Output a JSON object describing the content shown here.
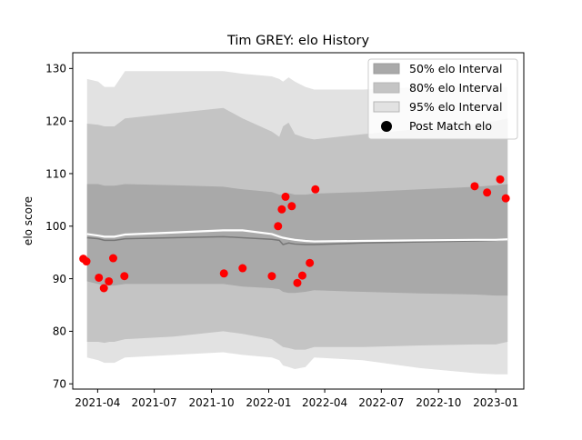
{
  "chart_data": {
    "type": "line",
    "title": "Tim GREY: elo History",
    "xlabel": "",
    "ylabel": "elo score",
    "ylim": [
      69,
      133
    ],
    "xlim": [
      "2021-02-20",
      "2023-02-15"
    ],
    "yticks": [
      70,
      80,
      90,
      100,
      110,
      120,
      130
    ],
    "xticks": [
      "2021-04",
      "2021-07",
      "2021-10",
      "2022-01",
      "2022-04",
      "2022-07",
      "2022-10",
      "2023-01"
    ],
    "grid": false,
    "legend_position": "top-right",
    "legend": [
      {
        "label": "50% elo Interval",
        "swatch": "band50"
      },
      {
        "label": "80% elo Interval",
        "swatch": "band80"
      },
      {
        "label": "95% elo Interval",
        "swatch": "band95"
      },
      {
        "label": "Post Match elo",
        "swatch": "dot"
      }
    ],
    "colors": {
      "band50": "#a9a9a9",
      "band80": "#c4c4c4",
      "band95": "#e2e2e2",
      "mean_line": "#777777",
      "center_line": "#ffffff",
      "points": "#ff0000"
    },
    "series": [
      {
        "name": "95% elo Interval",
        "kind": "band",
        "x": [
          "2021-03-15",
          "2021-04-02",
          "2021-04-12",
          "2021-04-20",
          "2021-04-28",
          "2021-05-15",
          "2021-08-01",
          "2021-10-20",
          "2021-11-20",
          "2022-01-06",
          "2022-01-18",
          "2022-01-24",
          "2022-02-02",
          "2022-02-12",
          "2022-03-01",
          "2022-03-15",
          "2022-06-01",
          "2022-09-01",
          "2022-12-01",
          "2023-01-01",
          "2023-01-20"
        ],
        "upper": [
          128,
          127.5,
          126.5,
          126.5,
          126.5,
          129.5,
          129.5,
          129.5,
          129,
          128.5,
          128,
          127.5,
          128.3,
          127.5,
          126.5,
          126,
          126,
          126.5,
          126.5,
          126.5,
          126.5
        ],
        "lower": [
          75,
          74.5,
          74,
          74,
          74,
          75,
          75.5,
          76,
          75.5,
          75,
          74.5,
          73.5,
          73.2,
          72.8,
          73.2,
          75,
          74.5,
          73,
          72,
          71.8,
          71.8
        ]
      },
      {
        "name": "80% elo Interval",
        "kind": "band",
        "x": [
          "2021-03-15",
          "2021-04-02",
          "2021-04-12",
          "2021-04-20",
          "2021-04-28",
          "2021-05-15",
          "2021-08-01",
          "2021-10-20",
          "2021-11-20",
          "2022-01-06",
          "2022-01-18",
          "2022-01-24",
          "2022-02-02",
          "2022-02-12",
          "2022-03-01",
          "2022-03-15",
          "2022-06-01",
          "2022-09-01",
          "2022-12-01",
          "2023-01-01",
          "2023-01-20"
        ],
        "upper": [
          119.5,
          119.3,
          119,
          119,
          119,
          120.5,
          121.5,
          122.5,
          120.5,
          118,
          117,
          119,
          119.7,
          117.5,
          116.8,
          116.5,
          117.5,
          118.5,
          119.5,
          120,
          120.5
        ],
        "lower": [
          78,
          78,
          77.8,
          78,
          78,
          78.5,
          79,
          80,
          79.5,
          78.5,
          77.5,
          77,
          76.8,
          76.5,
          76.5,
          77,
          77,
          77.3,
          77.5,
          77.5,
          78
        ]
      },
      {
        "name": "50% elo Interval",
        "kind": "band",
        "x": [
          "2021-03-15",
          "2021-04-02",
          "2021-04-12",
          "2021-04-20",
          "2021-04-28",
          "2021-05-15",
          "2021-08-01",
          "2021-10-20",
          "2021-11-20",
          "2022-01-06",
          "2022-01-18",
          "2022-01-24",
          "2022-02-02",
          "2022-02-12",
          "2022-03-01",
          "2022-03-15",
          "2022-06-01",
          "2022-09-01",
          "2022-12-01",
          "2023-01-01",
          "2023-01-20"
        ],
        "upper": [
          108,
          108,
          107.7,
          107.7,
          107.7,
          108,
          107.8,
          107.5,
          107,
          106.5,
          106,
          106,
          106.3,
          106,
          106,
          106.2,
          106.5,
          107,
          107.5,
          107.8,
          108
        ],
        "lower": [
          89.5,
          89,
          88.7,
          88.7,
          88.7,
          89,
          89,
          89,
          88.5,
          88.2,
          88,
          87.5,
          87.3,
          87.3,
          87.5,
          87.8,
          87.5,
          87.2,
          87,
          86.8,
          86.8
        ]
      },
      {
        "name": "mean",
        "kind": "line",
        "x": [
          "2021-03-15",
          "2021-04-02",
          "2021-04-12",
          "2021-04-20",
          "2021-04-28",
          "2021-05-15",
          "2021-08-01",
          "2021-10-20",
          "2021-11-20",
          "2022-01-06",
          "2022-01-18",
          "2022-01-24",
          "2022-02-02",
          "2022-02-12",
          "2022-03-01",
          "2022-03-15",
          "2022-06-01",
          "2022-09-01",
          "2022-12-01",
          "2023-01-01",
          "2023-01-20"
        ],
        "y": [
          97.8,
          97.6,
          97.3,
          97.3,
          97.3,
          97.6,
          97.8,
          98,
          97.8,
          97.5,
          97.3,
          96.5,
          96.8,
          96.6,
          96.5,
          96.5,
          96.8,
          97,
          97.2,
          97.3,
          97.5
        ]
      },
      {
        "name": "center",
        "kind": "line",
        "x": [
          "2021-03-15",
          "2021-04-02",
          "2021-04-12",
          "2021-04-20",
          "2021-04-28",
          "2021-05-15",
          "2021-08-01",
          "2021-10-20",
          "2021-11-20",
          "2022-01-06",
          "2022-01-18",
          "2022-01-24",
          "2022-02-02",
          "2022-02-12",
          "2022-03-01",
          "2022-03-15",
          "2022-06-01",
          "2022-09-01",
          "2022-12-01",
          "2023-01-01",
          "2023-01-20"
        ],
        "y": [
          98.5,
          98.2,
          98,
          98,
          98,
          98.4,
          98.8,
          99.2,
          99.2,
          98.5,
          98,
          97.8,
          97.6,
          97.4,
          97.2,
          97.1,
          97.2,
          97.3,
          97.4,
          97.4,
          97.5
        ]
      },
      {
        "name": "Post Match elo",
        "kind": "scatter",
        "x": [
          "2021-03-09",
          "2021-03-14",
          "2021-04-03",
          "2021-04-11",
          "2021-04-19",
          "2021-04-26",
          "2021-05-14",
          "2021-10-21",
          "2021-11-20",
          "2022-01-06",
          "2022-01-16",
          "2022-01-22",
          "2022-01-28",
          "2022-02-07",
          "2022-02-16",
          "2022-02-24",
          "2022-03-08",
          "2022-03-17",
          "2022-11-28",
          "2022-12-18",
          "2023-01-08",
          "2023-01-17"
        ],
        "y": [
          93.8,
          93.3,
          90.2,
          88.2,
          89.5,
          93.9,
          90.5,
          91,
          92,
          90.5,
          100,
          103.2,
          105.6,
          103.8,
          89.2,
          90.6,
          93,
          107,
          107.6,
          106.4,
          108.9,
          105.3
        ]
      }
    ]
  }
}
